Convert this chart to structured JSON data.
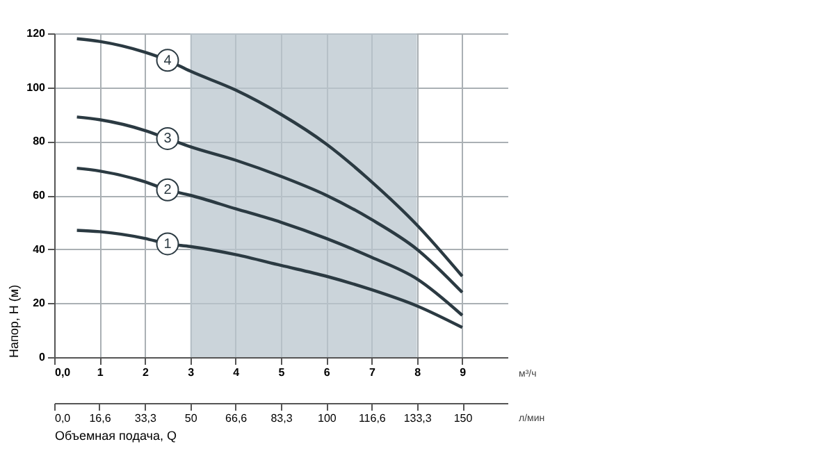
{
  "chart_data": {
    "type": "line",
    "xlabel": "Объемная подача, Q",
    "ylabel": "Напор, H (м)",
    "x2label": "л/мин",
    "annotations": [
      "м³/ч"
    ],
    "xlim": [
      0,
      10
    ],
    "xticks": [
      {
        "value": 0,
        "label": "0,0"
      },
      1,
      2,
      3,
      4,
      5,
      6,
      7,
      8,
      9
    ],
    "x2lim": [
      0,
      166.6
    ],
    "x2ticks": [
      {
        "value": 0,
        "label": "0,0"
      },
      {
        "value": 16.6,
        "label": "16,6"
      },
      {
        "value": 33.3,
        "label": "33,3"
      },
      50,
      {
        "value": 66.6,
        "label": "66,6"
      },
      {
        "value": 83.3,
        "label": "83,3"
      },
      100,
      {
        "value": 116.6,
        "label": "116,6"
      },
      {
        "value": 133.3,
        "label": "133,3"
      },
      150
    ],
    "ylim": [
      0,
      120
    ],
    "yticks": [
      0,
      20,
      40,
      60,
      80,
      100,
      120
    ],
    "grid": true,
    "legend": false,
    "marker": "none",
    "line_style": "solid",
    "x": [
      0.5,
      1,
      2,
      2.5,
      3,
      4,
      5,
      6,
      7,
      8,
      9
    ],
    "bands": [
      {
        "axis": "x",
        "from": 3,
        "to": 8,
        "color": "#b9c5cd"
      }
    ],
    "series": [
      {
        "name": "1",
        "color": "#2b3a42",
        "values": [
          47,
          46.5,
          44,
          42,
          41,
          38,
          34,
          30,
          25,
          19,
          11
        ]
      },
      {
        "name": "2",
        "color": "#2b3a42",
        "values": [
          70,
          69,
          65,
          62,
          60,
          55,
          50,
          44,
          37,
          29,
          15.5
        ]
      },
      {
        "name": "3",
        "color": "#2b3a42",
        "values": [
          89,
          88,
          84,
          81,
          78,
          73,
          67,
          60,
          51,
          40,
          24
        ]
      },
      {
        "name": "4",
        "color": "#2b3a42",
        "values": [
          118,
          117,
          113,
          110,
          106,
          99,
          90,
          79,
          65,
          49,
          30
        ]
      }
    ]
  }
}
